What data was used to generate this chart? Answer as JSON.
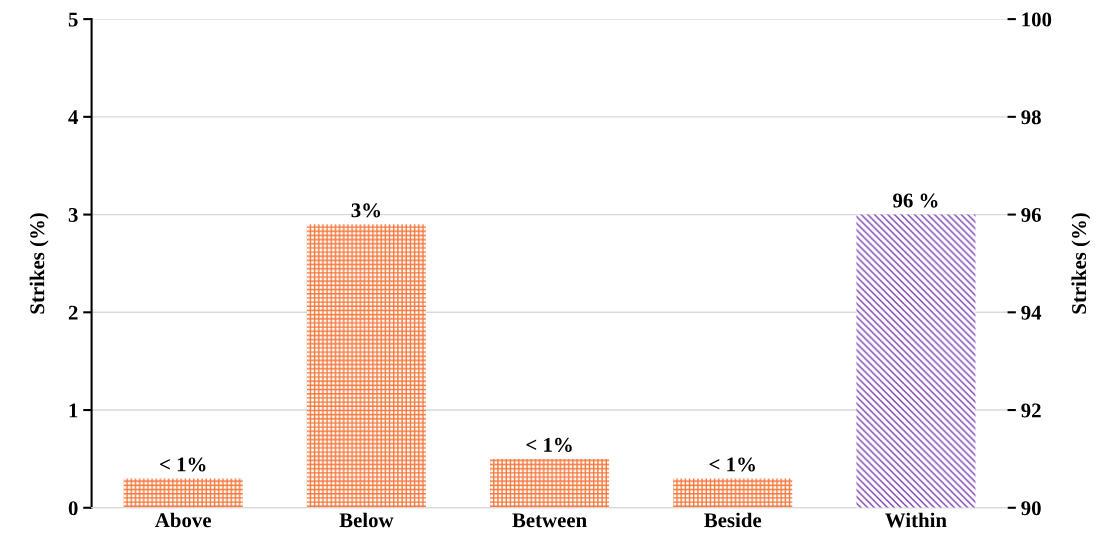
{
  "chart_data": {
    "type": "bar",
    "ylabel": "Strikes (%)",
    "y2label": "Strikes (%)",
    "categories": [
      "Above",
      "Below",
      "Between",
      "Beside",
      "Within"
    ],
    "series": [
      {
        "color": "#f4773a",
        "values": [
          0.3,
          2.9,
          0.5,
          0.3,
          null
        ],
        "value_labels": [
          "< 1%",
          "3%",
          "< 1%",
          "< 1%",
          null
        ]
      },
      {
        "color": "#7a3fb0",
        "axis": "y2",
        "values": [
          null,
          null,
          null,
          null,
          96
        ],
        "value_labels": [
          null,
          null,
          null,
          null,
          "96 %"
        ]
      }
    ],
    "ylim": [
      0,
      5
    ],
    "yticks": [
      0,
      1,
      2,
      3,
      4,
      5
    ],
    "y2lim": [
      90,
      100
    ],
    "y2ticks": [
      90,
      92,
      94,
      96,
      98,
      100
    ],
    "grid": "y",
    "legend": false
  }
}
